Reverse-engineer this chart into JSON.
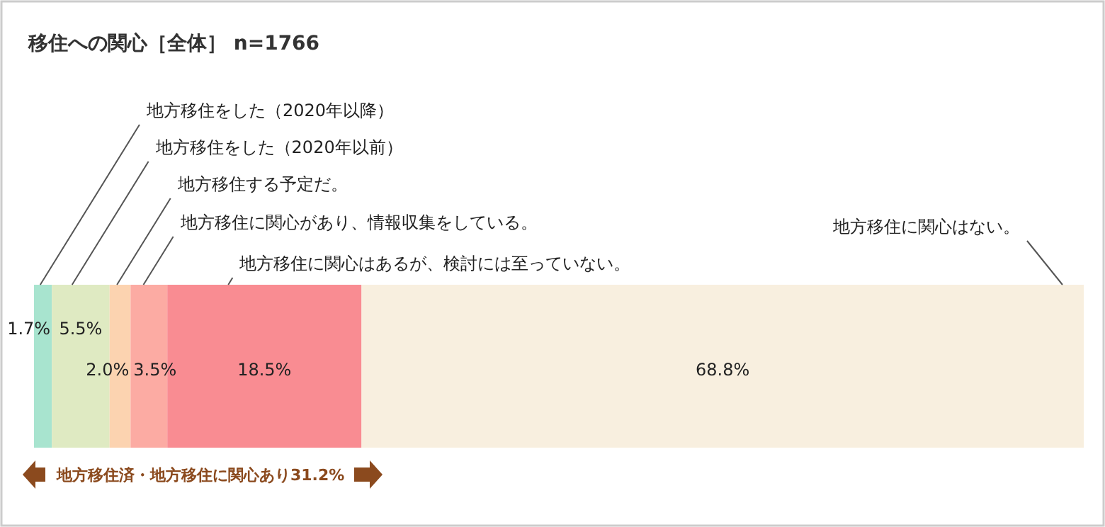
{
  "chart_data": {
    "type": "bar",
    "orientation": "horizontal",
    "stacked": true,
    "title": "移住への関心［全体］ n=1766",
    "categories": [
      null
    ],
    "legend": false,
    "series": [
      {
        "name": "地方移住をした（2020年以降）",
        "color": "#a8e4cf",
        "values": [
          1.7
        ],
        "value_labels": [
          "1.7%"
        ]
      },
      {
        "name": "地方移住をした（2020年以前）",
        "color": "#dfeac2",
        "values": [
          5.5
        ],
        "value_labels": [
          "5.5%"
        ]
      },
      {
        "name": "地方移住する予定だ。",
        "color": "#fcd3b0",
        "values": [
          2.0
        ],
        "value_labels": [
          "2.0%"
        ]
      },
      {
        "name": "地方移住に関心があり、情報収集をしている。",
        "color": "#fcaba3",
        "values": [
          3.5
        ],
        "value_labels": [
          "3.5%"
        ]
      },
      {
        "name": "地方移住に関心はあるが、検討には至っていない。",
        "color": "#f98c92",
        "values": [
          18.5
        ],
        "value_labels": [
          "18.5%"
        ]
      },
      {
        "name": "地方移住に関心はない。",
        "color": "#f8efdf",
        "values": [
          68.8
        ],
        "value_labels": [
          "68.8%"
        ]
      }
    ],
    "annotations": [
      "地方移住済・地方移住に関心あり31.2%"
    ]
  }
}
